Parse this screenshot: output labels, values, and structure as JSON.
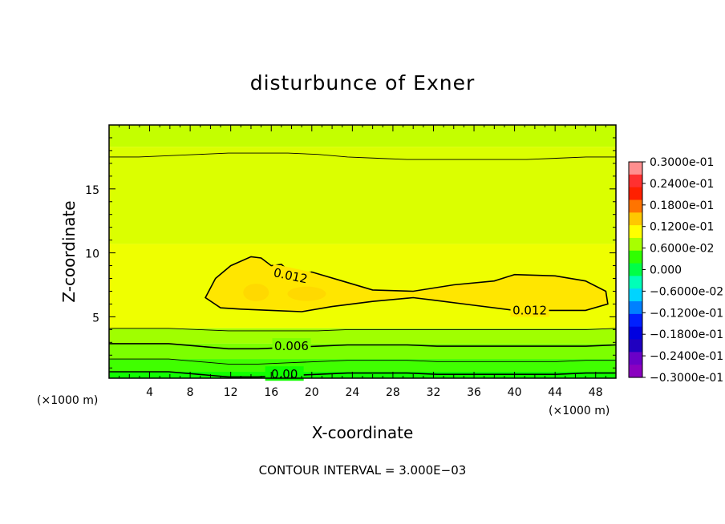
{
  "chart_data": {
    "type": "heatmap",
    "title": "disturbunce of Exner",
    "xlabel": "X-coordinate",
    "ylabel": "Z-coordinate",
    "x_unit": "(×1000 m)",
    "y_unit": "(×1000 m)",
    "xlim": [
      0,
      50
    ],
    "ylim": [
      0.2,
      20
    ],
    "x_ticks": [
      4,
      8,
      12,
      16,
      20,
      24,
      28,
      32,
      36,
      40,
      44,
      48
    ],
    "y_ticks": [
      5,
      10,
      15
    ],
    "colorbar": {
      "range": [
        -0.03,
        0.03
      ],
      "tick_labels": [
        "0.3000e-01",
        "0.2400e-01",
        "0.1800e-01",
        "0.1200e-01",
        "0.6000e-02",
        "0.000",
        "−0.6000e-02",
        "−0.1200e-01",
        "−0.1800e-01",
        "−0.2400e-01",
        "−0.3000e-01"
      ],
      "tick_values": [
        0.03,
        0.024,
        0.018,
        0.012,
        0.006,
        0.0,
        -0.006,
        -0.012,
        -0.018,
        -0.024,
        -0.03
      ]
    },
    "contour_interval_text": "CONTOUR INTERVAL = 3.000E−03",
    "contour_labels": [
      {
        "text": "0.012",
        "x": 17.9,
        "z": 8.2
      },
      {
        "text": "0.012",
        "x": 41.5,
        "z": 5.5
      },
      {
        "text": "0.006",
        "x": 18.0,
        "z": 2.7
      },
      {
        "text": "0.00",
        "x": 17.3,
        "z": 0.5
      }
    ],
    "contours": [
      {
        "level": 0.015,
        "z": [
          17.5,
          17.5,
          17.6,
          17.7,
          17.8,
          17.8,
          17.8,
          17.7,
          17.5,
          17.4,
          17.3,
          17.3,
          17.3,
          17.3,
          17.3,
          17.4,
          17.5,
          17.5
        ]
      },
      {
        "level": 0.009,
        "z": [
          4.1,
          4.1,
          4.1,
          4.0,
          3.9,
          3.9,
          3.9,
          3.9,
          4.0,
          4.0,
          4.0,
          4.0,
          4.0,
          4.0,
          4.0,
          4.0,
          4.0,
          4.1
        ]
      },
      {
        "level": 0.006,
        "z": [
          2.9,
          2.9,
          2.9,
          2.7,
          2.5,
          2.5,
          2.6,
          2.7,
          2.8,
          2.8,
          2.8,
          2.7,
          2.7,
          2.7,
          2.7,
          2.7,
          2.7,
          2.8
        ]
      },
      {
        "level": 0.003,
        "z": [
          1.7,
          1.7,
          1.7,
          1.5,
          1.3,
          1.3,
          1.4,
          1.5,
          1.6,
          1.6,
          1.6,
          1.5,
          1.5,
          1.5,
          1.5,
          1.5,
          1.6,
          1.6
        ]
      },
      {
        "level": 0.0,
        "z": [
          0.7,
          0.7,
          0.7,
          0.5,
          0.3,
          0.3,
          0.4,
          0.5,
          0.6,
          0.6,
          0.6,
          0.5,
          0.5,
          0.5,
          0.5,
          0.5,
          0.6,
          0.6
        ]
      }
    ],
    "closed_contour_0012": [
      [
        9.5,
        6.5
      ],
      [
        10.5,
        8.0
      ],
      [
        12.0,
        9.0
      ],
      [
        14.0,
        9.7
      ],
      [
        15.0,
        9.6
      ],
      [
        16.0,
        9.0
      ],
      [
        17.0,
        9.1
      ],
      [
        18.0,
        8.4
      ],
      [
        20.0,
        8.5
      ],
      [
        23.0,
        7.8
      ],
      [
        26.0,
        7.1
      ],
      [
        30.0,
        7.0
      ],
      [
        34.0,
        7.5
      ],
      [
        38.0,
        7.8
      ],
      [
        40.0,
        8.3
      ],
      [
        44.0,
        8.2
      ],
      [
        47.0,
        7.8
      ],
      [
        49.0,
        7.0
      ],
      [
        49.2,
        6.0
      ],
      [
        47.0,
        5.5
      ],
      [
        44.0,
        5.5
      ],
      [
        40.0,
        5.5
      ],
      [
        36.0,
        5.9
      ],
      [
        32.0,
        6.3
      ],
      [
        30.0,
        6.5
      ],
      [
        26.0,
        6.2
      ],
      [
        22.0,
        5.8
      ],
      [
        19.0,
        5.4
      ],
      [
        16.0,
        5.5
      ],
      [
        13.0,
        5.6
      ],
      [
        11.0,
        5.7
      ],
      [
        9.5,
        6.5
      ]
    ],
    "field_zones": [
      {
        "color": "#c4ff00",
        "z_bottom": 18.3,
        "z_top": 20
      },
      {
        "color": "#dbff00",
        "z_bottom": 10.7,
        "z_top": 18.3
      },
      {
        "color": "#efff00",
        "z_bottom": 4.1,
        "z_top": 10.7
      },
      {
        "color": "#a0ff00",
        "z_bottom": 2.9,
        "z_top": 4.1
      },
      {
        "color": "#7cff00",
        "z_bottom": 1.7,
        "z_top": 2.9
      },
      {
        "color": "#40ff00",
        "z_bottom": 0.7,
        "z_top": 1.7
      },
      {
        "color": "#10ff00",
        "z_bottom": 0.2,
        "z_top": 0.7
      }
    ],
    "core_color": "#ffe600",
    "core_inner_color": "#ffd900",
    "grid": false,
    "legend_placement": "right colorbar"
  }
}
